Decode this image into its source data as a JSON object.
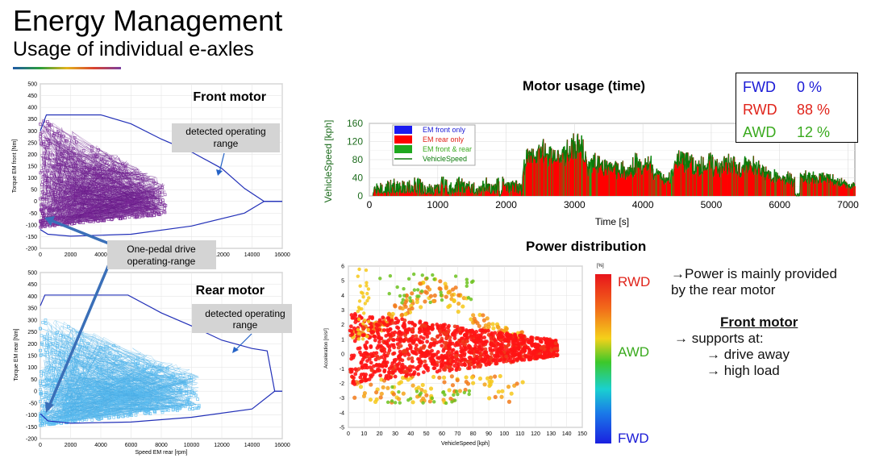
{
  "header": {
    "title": "Energy Management",
    "subtitle": "Usage of individual e-axles"
  },
  "front_panel": {
    "title": "Front motor",
    "callout": "detected operating range",
    "y_label": "Torque EM front [Nm]",
    "y_ticks": [
      500,
      450,
      400,
      350,
      300,
      250,
      200,
      150,
      100,
      50,
      0,
      -50,
      -100,
      -150,
      -200
    ],
    "x_ticks": [
      0,
      2000,
      4000,
      6000,
      8000,
      10000,
      12000,
      14000,
      16000
    ]
  },
  "pedal_callout": "One-pedal drive operating-range",
  "rear_panel": {
    "title": "Rear motor",
    "callout": "detected operating range",
    "y_label": "Torque EM rear [Nm]",
    "x_label": "Speed EM rear [rpm]",
    "y_ticks": [
      500,
      450,
      400,
      350,
      300,
      250,
      200,
      150,
      100,
      50,
      0,
      -50,
      -100,
      -150,
      -200
    ],
    "x_ticks": [
      0,
      2000,
      4000,
      6000,
      8000,
      10000,
      12000,
      14000,
      16000
    ]
  },
  "usage_title": "Motor usage (time)",
  "stats_box": {
    "items": [
      {
        "label": "FWD",
        "value": "0 %",
        "color": "#1a1ad6"
      },
      {
        "label": "RWD",
        "value": "88 %",
        "color": "#e0241b"
      },
      {
        "label": "AWD",
        "value": "12 %",
        "color": "#3aaa1e"
      }
    ]
  },
  "power_title": "Power distribution",
  "colorbar": {
    "unit": "[%]",
    "top": "RWD",
    "mid": "AWD",
    "bottom": "FWD",
    "top_color": "#e0241b",
    "mid_color": "#3aaa1e",
    "bottom_color": "#1a1ad6"
  },
  "scatter_axes": {
    "y_label": "Acceleration [m/s²]",
    "x_label": "VehicleSpeed [kph]",
    "y_ticks": [
      6,
      5,
      4,
      3,
      2,
      1,
      0,
      -1,
      -2,
      -3,
      -4,
      -5
    ],
    "x_ticks": [
      0,
      10,
      20,
      30,
      40,
      50,
      60,
      70,
      80,
      90,
      100,
      110,
      120,
      130,
      140,
      150
    ]
  },
  "notes": {
    "line1": "→Power is mainly provided",
    "line2": "by the rear motor",
    "heading": "Front motor",
    "b1": "→  supports at:",
    "b2": "→  drive away",
    "b3": "→  high load"
  },
  "chart_data": [
    {
      "type": "scatter",
      "title": "Front motor",
      "ylabel": "Torque EM front [Nm]",
      "xlim": [
        0,
        16000
      ],
      "ylim": [
        -200,
        500
      ],
      "series": [
        {
          "name": "detected operating range",
          "x": [
            0,
            400,
            4000,
            6000,
            8000,
            10000,
            12000,
            13500,
            14800,
            16000
          ],
          "y": [
            300,
            368,
            368,
            330,
            265,
            210,
            140,
            55,
            0,
            0
          ]
        },
        {
          "x": [
            0,
            500,
            2000,
            6000,
            10000,
            13500,
            14800,
            16000
          ],
          "y": [
            -120,
            -140,
            -148,
            -140,
            -105,
            -50,
            0,
            0
          ]
        }
      ],
      "scatter_cluster": {
        "x_range": [
          0,
          8300
        ],
        "y_range": [
          -110,
          345
        ]
      }
    },
    {
      "type": "scatter",
      "title": "Rear motor",
      "xlabel": "Speed EM rear [rpm]",
      "ylabel": "Torque EM rear [Nm]",
      "xlim": [
        0,
        16000
      ],
      "ylim": [
        -200,
        500
      ],
      "series": [
        {
          "name": "detected operating range",
          "x": [
            0,
            300,
            5800,
            8000,
            10000,
            12000,
            14000,
            15000,
            15500,
            16000
          ],
          "y": [
            360,
            405,
            405,
            330,
            275,
            215,
            180,
            170,
            0,
            0
          ]
        },
        {
          "x": [
            0,
            500,
            2000,
            6000,
            10000,
            14000,
            15500,
            16000
          ],
          "y": [
            -95,
            -125,
            -135,
            -130,
            -110,
            -75,
            0,
            0
          ]
        }
      ],
      "scatter_cluster": {
        "x_range": [
          0,
          10500
        ],
        "y_range": [
          -145,
          300
        ]
      }
    },
    {
      "type": "area",
      "title": "Motor usage (time)",
      "xlabel": "Time [s]",
      "ylabel": "VehicleSpeed [kph]",
      "xlim": [
        0,
        7100
      ],
      "ylim": [
        0,
        160
      ],
      "legend_placement": "top-left",
      "series": [
        {
          "name": "EM front only",
          "color": "#1a1af0"
        },
        {
          "name": "EM rear only",
          "color": "#ff0000"
        },
        {
          "name": "EM front & rear",
          "color": "#1ea81e"
        },
        {
          "name": "VehicleSpeed",
          "color": "#0a7a0a",
          "x": [
            0,
            100,
            200,
            400,
            500,
            600,
            700,
            800,
            900,
            1000,
            1100,
            1200,
            1300,
            1400,
            1500,
            1600,
            1700,
            1800,
            1900,
            2000,
            2100,
            2200,
            2300,
            2400,
            2500,
            2600,
            2700,
            2800,
            2900,
            3000,
            3100,
            3200,
            3300,
            3400,
            3500,
            3600,
            3700,
            3800,
            3900,
            4000,
            4100,
            4200,
            4300,
            4400,
            4500,
            4600,
            4700,
            4800,
            4900,
            5000,
            5100,
            5200,
            5300,
            5400,
            5500,
            5600,
            5700,
            5800,
            5900,
            6000,
            6100,
            6200,
            6300,
            6400,
            6500,
            6600,
            6700,
            6800,
            6900,
            7000,
            7100
          ],
          "y": [
            0,
            20,
            30,
            35,
            25,
            30,
            40,
            20,
            25,
            30,
            35,
            20,
            40,
            25,
            30,
            15,
            35,
            20,
            45,
            30,
            40,
            25,
            105,
            100,
            110,
            108,
            100,
            95,
            112,
            132,
            135,
            80,
            95,
            75,
            85,
            70,
            65,
            60,
            90,
            70,
            80,
            55,
            40,
            50,
            95,
            90,
            85,
            75,
            80,
            85,
            65,
            90,
            80,
            70,
            85,
            75,
            70,
            60,
            50,
            45,
            48,
            40,
            55,
            50,
            45,
            50,
            45,
            40,
            35,
            30,
            30
          ]
        }
      ]
    },
    {
      "type": "scatter",
      "title": "Power distribution",
      "xlabel": "VehicleSpeed [kph]",
      "ylabel": "Acceleration [m/s²]",
      "xlim": [
        0,
        150
      ],
      "ylim": [
        -5,
        6
      ],
      "series": [
        {
          "name": "RWD",
          "x": [
            2,
            20,
            40,
            60,
            80,
            100,
            120,
            135
          ],
          "y": [
            0.3,
            0.6,
            0.5,
            0.4,
            0.3,
            0.2,
            0.2,
            0
          ]
        },
        {
          "name": "AWD",
          "x": [
            5,
            10,
            15,
            30,
            45,
            60,
            75
          ],
          "y": [
            5.8,
            4.5,
            3,
            -3.2,
            -2.8,
            -2.5,
            -2
          ]
        }
      ]
    }
  ]
}
